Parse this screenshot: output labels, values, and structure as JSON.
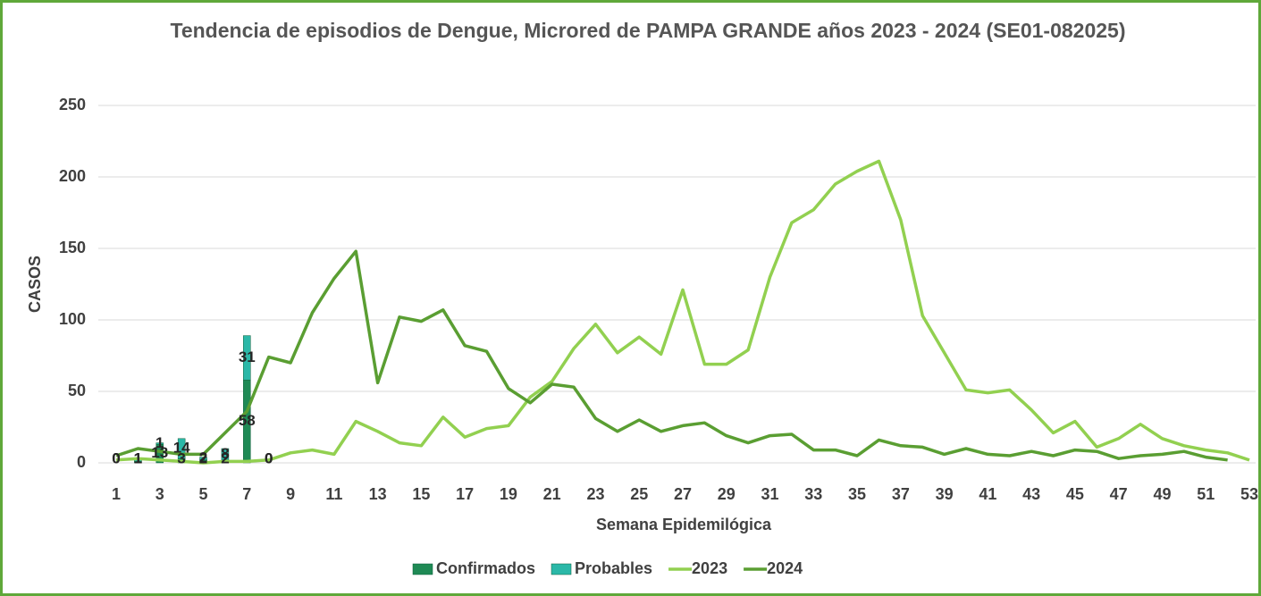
{
  "chart_data": {
    "type": "bar-line",
    "title": "Tendencia de episodios de Dengue, Microred de PAMPA GRANDE años 2023 - 2024 (SE01-082025)",
    "x_label": "Semana Epidemilógica",
    "y_label": "CASOS",
    "categories": [
      1,
      null,
      3,
      null,
      5,
      null,
      7,
      null,
      9,
      null,
      11,
      null,
      13,
      null,
      15,
      null,
      17,
      null,
      19,
      null,
      21,
      null,
      23,
      null,
      25,
      null,
      27,
      null,
      29,
      null,
      31,
      null,
      33,
      null,
      35,
      null,
      37,
      null,
      39,
      null,
      41,
      null,
      43,
      null,
      45,
      null,
      47,
      null,
      49,
      null,
      51,
      null,
      53
    ],
    "ylim": [
      0,
      250
    ],
    "yticks": [
      0,
      50,
      100,
      150,
      200,
      250
    ],
    "grid": true,
    "series": [
      {
        "name": "Confirmados",
        "kind": "bar",
        "color": "#1f8a55",
        "values": [
          0,
          1,
          13,
          3,
          2,
          2,
          58,
          0,
          null,
          null,
          null,
          null,
          null,
          null,
          null,
          null,
          null,
          null,
          null,
          null,
          null,
          null,
          null,
          null,
          null,
          null,
          null,
          null,
          null,
          null,
          null,
          null,
          null,
          null,
          null,
          null,
          null,
          null,
          null,
          null,
          null,
          null,
          null,
          null,
          null,
          null,
          null,
          null,
          null,
          null,
          null,
          null,
          null
        ]
      },
      {
        "name": "Probables",
        "kind": "bar",
        "color": "#2bb8a8",
        "values": [
          0,
          1,
          1,
          14,
          2,
          8,
          31,
          0,
          null,
          null,
          null,
          null,
          null,
          null,
          null,
          null,
          null,
          null,
          null,
          null,
          null,
          null,
          null,
          null,
          null,
          null,
          null,
          null,
          null,
          null,
          null,
          null,
          null,
          null,
          null,
          null,
          null,
          null,
          null,
          null,
          null,
          null,
          null,
          null,
          null,
          null,
          null,
          null,
          null,
          null,
          null,
          null,
          null
        ]
      },
      {
        "name": "2023",
        "kind": "line",
        "color": "#92d050",
        "values": [
          2,
          3,
          2,
          1,
          0,
          1,
          1,
          2,
          7,
          9,
          6,
          29,
          22,
          14,
          12,
          32,
          18,
          24,
          26,
          46,
          57,
          80,
          97,
          77,
          88,
          76,
          121,
          69,
          69,
          79,
          130,
          168,
          177,
          195,
          204,
          211,
          170,
          103,
          77,
          51,
          49,
          51,
          37,
          21,
          29,
          11,
          17,
          27,
          17,
          12,
          9,
          7,
          2
        ]
      },
      {
        "name": "2024",
        "kind": "line",
        "color": "#5a9e32",
        "values": [
          5,
          10,
          8,
          6,
          6,
          21,
          36,
          74,
          70,
          105,
          129,
          148,
          56,
          102,
          99,
          107,
          82,
          78,
          52,
          42,
          55,
          53,
          31,
          22,
          30,
          22,
          26,
          28,
          19,
          14,
          19,
          20,
          9,
          9,
          5,
          16,
          12,
          11,
          6,
          10,
          6,
          5,
          8,
          5,
          9,
          8,
          3,
          5,
          6,
          8,
          4,
          2,
          null
        ]
      }
    ]
  }
}
